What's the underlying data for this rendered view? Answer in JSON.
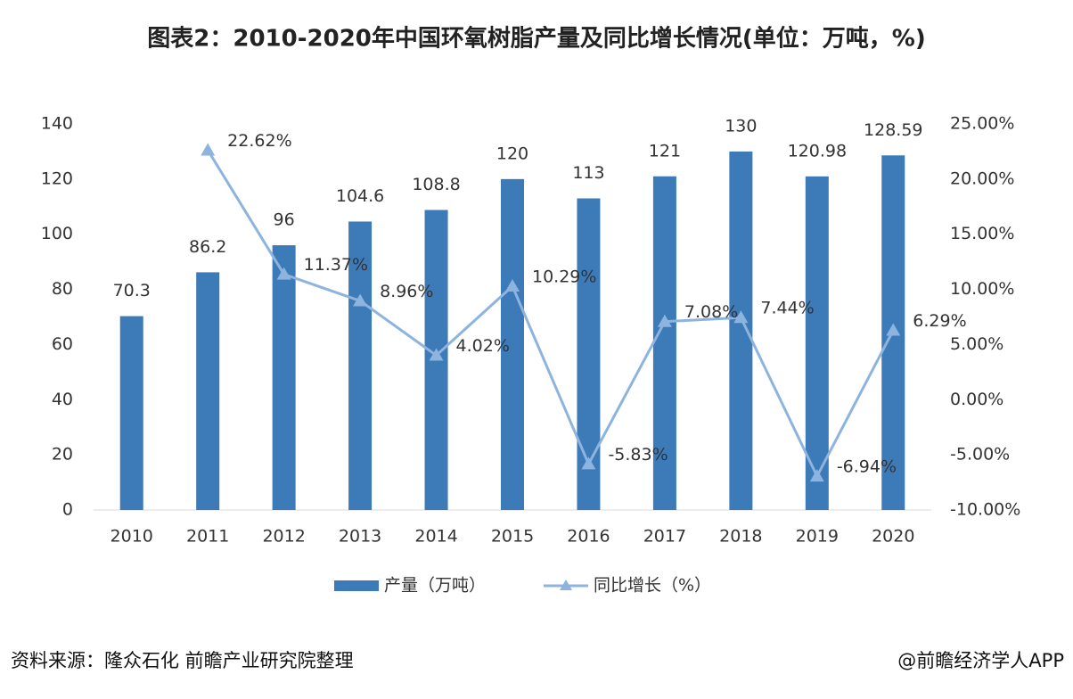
{
  "chart_data": {
    "type": "bar",
    "title": "图表2：2010-2020年中国环氧树脂产量及同比增长情况(单位：万吨，%)",
    "categories": [
      "2010",
      "2011",
      "2012",
      "2013",
      "2014",
      "2015",
      "2016",
      "2017",
      "2018",
      "2019",
      "2020"
    ],
    "series": [
      {
        "name": "产量（万吨）",
        "color": "#3d7ab8",
        "values": [
          70.3,
          86.2,
          96,
          104.6,
          108.8,
          120,
          113,
          121,
          130,
          120.98,
          128.59
        ]
      },
      {
        "name": "同比增长（%）",
        "type": "line",
        "axis": "y2",
        "color": "#8db3df",
        "values": [
          null,
          22.62,
          11.37,
          8.96,
          4.02,
          10.29,
          -5.83,
          7.08,
          7.44,
          -6.94,
          6.29
        ],
        "value_labels": [
          null,
          "22.62%",
          "11.37%",
          "8.96%",
          "4.02%",
          "10.29%",
          "-5.83%",
          "7.08%",
          "7.44%",
          "-6.94%",
          "6.29%"
        ]
      }
    ],
    "ylim": [
      0,
      140
    ],
    "yticks": [
      0,
      20,
      40,
      60,
      80,
      100,
      120,
      140
    ],
    "y2lim": [
      -10,
      25
    ],
    "y2ticks": [
      {
        "value": -10,
        "label": "-10.00%"
      },
      {
        "value": -5,
        "label": "-5.00%"
      },
      {
        "value": 0,
        "label": "0.00%"
      },
      {
        "value": 5,
        "label": "5.00%"
      },
      {
        "value": 10,
        "label": "10.00%"
      },
      {
        "value": 15,
        "label": "15.00%"
      },
      {
        "value": 20,
        "label": "20.00%"
      },
      {
        "value": 25,
        "label": "25.00%"
      }
    ],
    "legend": "bottom",
    "source": "资料来源：隆众石化 前瞻产业研究院整理",
    "footer": "@前瞻经济学人APP"
  }
}
